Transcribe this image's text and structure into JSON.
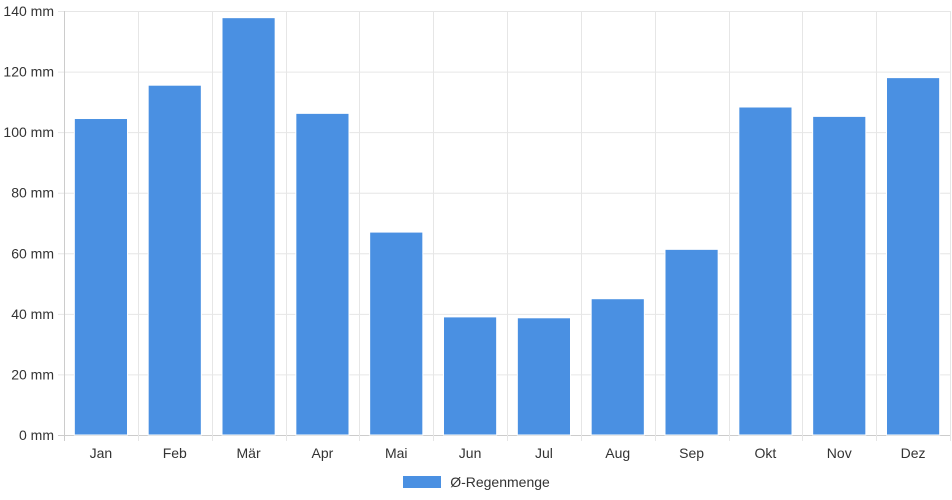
{
  "chart_data": {
    "type": "bar",
    "categories": [
      "Jan",
      "Feb",
      "Mär",
      "Apr",
      "Mai",
      "Jun",
      "Jul",
      "Aug",
      "Sep",
      "Okt",
      "Nov",
      "Dez"
    ],
    "series": [
      {
        "name": "Ø-Regenmenge",
        "values": [
          104.5,
          115.5,
          137.8,
          106.2,
          67,
          39,
          38.7,
          45,
          61.3,
          108.3,
          105.2,
          118
        ]
      }
    ],
    "y_ticks": [
      0,
      20,
      40,
      60,
      80,
      100,
      120,
      140
    ],
    "y_unit": "mm",
    "ylim": [
      0,
      140
    ],
    "grid": true,
    "legend": "bottom",
    "title": "",
    "xlabel": "",
    "ylabel": ""
  },
  "colors": {
    "bar": "#4a90e2",
    "grid": "#e6e6e6",
    "axis": "#cccccc",
    "text": "#333333"
  }
}
